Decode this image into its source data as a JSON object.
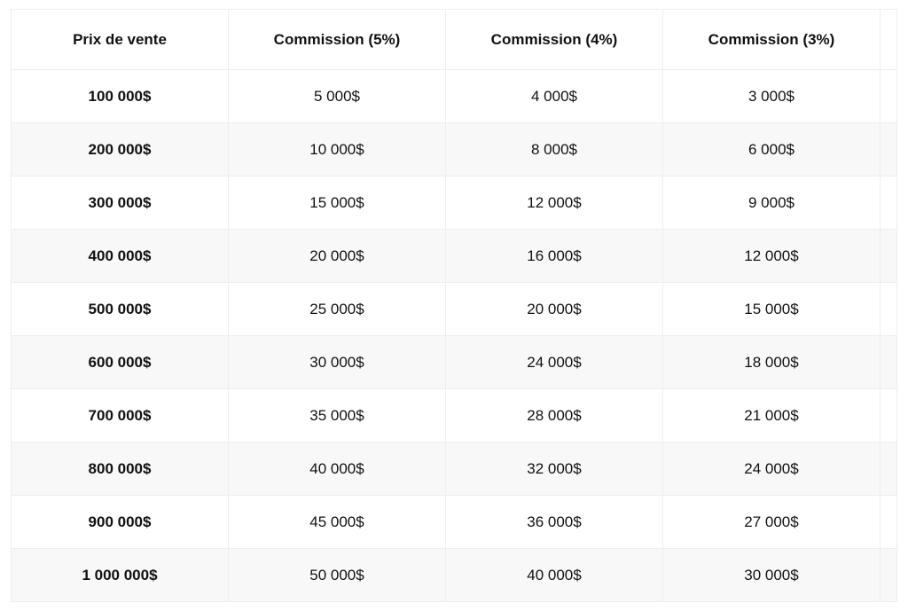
{
  "table": {
    "columns": [
      "Prix de vente",
      "Commission (5%)",
      "Commission (4%)",
      "Commission (3%)",
      ""
    ],
    "rows": [
      {
        "price": "100 000$",
        "c5": "5 000$",
        "c4": "4 000$",
        "c3": "3 000$",
        "tail": ""
      },
      {
        "price": "200 000$",
        "c5": "10 000$",
        "c4": "8 000$",
        "c3": "6 000$",
        "tail": ""
      },
      {
        "price": "300 000$",
        "c5": "15 000$",
        "c4": "12 000$",
        "c3": "9 000$",
        "tail": ""
      },
      {
        "price": "400 000$",
        "c5": "20 000$",
        "c4": "16 000$",
        "c3": "12 000$",
        "tail": ""
      },
      {
        "price": "500 000$",
        "c5": "25 000$",
        "c4": "20 000$",
        "c3": "15 000$",
        "tail": ""
      },
      {
        "price": "600 000$",
        "c5": "30 000$",
        "c4": "24 000$",
        "c3": "18 000$",
        "tail": ""
      },
      {
        "price": "700 000$",
        "c5": "35 000$",
        "c4": "28 000$",
        "c3": "21 000$",
        "tail": ""
      },
      {
        "price": "800 000$",
        "c5": "40 000$",
        "c4": "32 000$",
        "c3": "24 000$",
        "tail": ""
      },
      {
        "price": "900 000$",
        "c5": "45 000$",
        "c4": "36 000$",
        "c3": "27 000$",
        "tail": ""
      },
      {
        "price": "1 000 000$",
        "c5": "50 000$",
        "c4": "40 000$",
        "c3": "30 000$",
        "tail": ""
      }
    ],
    "colors": {
      "border": "#eeeeee",
      "row_alt_bg": "#f8f8f8",
      "text": "#111111",
      "background": "#ffffff"
    },
    "font_sizes": {
      "header": 17,
      "cell": 17
    }
  }
}
